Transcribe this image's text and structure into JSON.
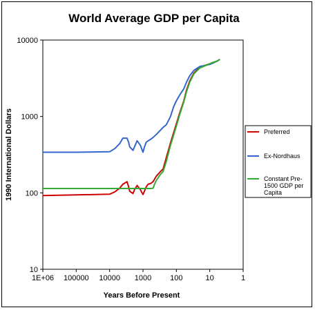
{
  "chart_data": {
    "type": "line",
    "title": "World Average GDP per Capita",
    "xlabel": "Years Before Present",
    "ylabel": "1990 International Dollars",
    "x_scale": "log-reversed",
    "y_scale": "log",
    "xlim": [
      1000000,
      1
    ],
    "ylim": [
      10,
      10000
    ],
    "x_ticks": [
      {
        "value": 1000000,
        "label": "1E+06"
      },
      {
        "value": 100000,
        "label": "100000"
      },
      {
        "value": 10000,
        "label": "10000"
      },
      {
        "value": 1000,
        "label": "1000"
      },
      {
        "value": 100,
        "label": "100"
      },
      {
        "value": 10,
        "label": "10"
      },
      {
        "value": 1,
        "label": "1"
      }
    ],
    "y_ticks": [
      {
        "value": 10,
        "label": "10"
      },
      {
        "value": 100,
        "label": "100"
      },
      {
        "value": 1000,
        "label": "1000"
      },
      {
        "value": 10000,
        "label": "10000"
      }
    ],
    "grid": false,
    "legend_position": "right",
    "series": [
      {
        "name": "Preferred",
        "color": "#cc0000",
        "x": [
          1000000,
          100000,
          10000,
          7000,
          5000,
          4000,
          3000,
          2700,
          2500,
          2000,
          1800,
          1500,
          1200,
          1000,
          800,
          700,
          600,
          500,
          400,
          300,
          250,
          200,
          150,
          100,
          80,
          60,
          50,
          40,
          30,
          20,
          10,
          8,
          6,
          5
        ],
        "y": [
          92,
          94,
          96,
          103,
          115,
          130,
          140,
          120,
          105,
          98,
          110,
          125,
          110,
          95,
          120,
          130,
          132,
          140,
          165,
          190,
          205,
          290,
          450,
          800,
          1100,
          1600,
          2200,
          2900,
          3700,
          4400,
          4900,
          5100,
          5300,
          5600
        ]
      },
      {
        "name": "Ex-Nordhaus",
        "color": "#3366cc",
        "x": [
          1000000,
          100000,
          10000,
          7000,
          5000,
          4000,
          3000,
          2700,
          2500,
          2000,
          1800,
          1500,
          1200,
          1000,
          900,
          800,
          700,
          600,
          500,
          400,
          300,
          250,
          200,
          150,
          120,
          100,
          80,
          60,
          50,
          40,
          30,
          20,
          10,
          8,
          6,
          5
        ],
        "y": [
          340,
          340,
          345,
          380,
          440,
          520,
          520,
          460,
          400,
          360,
          400,
          480,
          420,
          340,
          400,
          460,
          480,
          500,
          530,
          580,
          660,
          720,
          780,
          1000,
          1350,
          1600,
          1900,
          2300,
          2800,
          3400,
          4000,
          4500,
          4800,
          5000,
          5300,
          5600
        ]
      },
      {
        "name": "Constant Pre-1500 GDP per Capita",
        "color": "#33aa33",
        "x": [
          1000000,
          100000,
          10000,
          1000,
          600,
          500,
          450,
          400,
          300,
          250,
          200,
          150,
          100,
          80,
          60,
          50,
          40,
          30,
          20,
          10,
          8,
          6,
          5
        ],
        "y": [
          114,
          114,
          114,
          114,
          114,
          115,
          130,
          145,
          175,
          190,
          260,
          420,
          750,
          1050,
          1550,
          2100,
          2800,
          3600,
          4300,
          4900,
          5100,
          5300,
          5600
        ]
      }
    ]
  }
}
